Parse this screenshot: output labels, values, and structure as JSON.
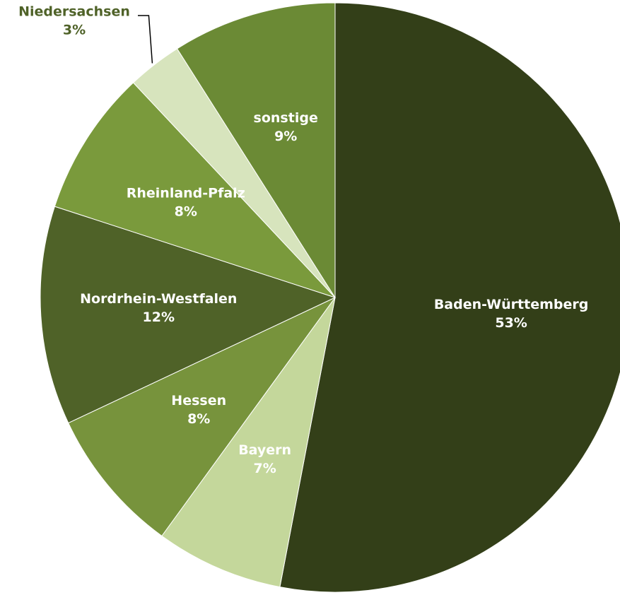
{
  "chart_data": {
    "type": "pie",
    "categories": [
      "Baden-Württemberg",
      "Bayern",
      "Hessen",
      "Nordrhein-Westfalen",
      "Rheinland-Pfalz",
      "Niedersachsen",
      "sonstige"
    ],
    "values": [
      53,
      7,
      8,
      12,
      8,
      3,
      9
    ],
    "value_labels": [
      "53%",
      "7%",
      "8%",
      "12%",
      "8%",
      "3%",
      "9%"
    ],
    "colors": [
      "#333f18",
      "#c4d79b",
      "#77933c",
      "#4f6228",
      "#7a9a3c",
      "#d7e4bd",
      "#6b8a35"
    ]
  }
}
